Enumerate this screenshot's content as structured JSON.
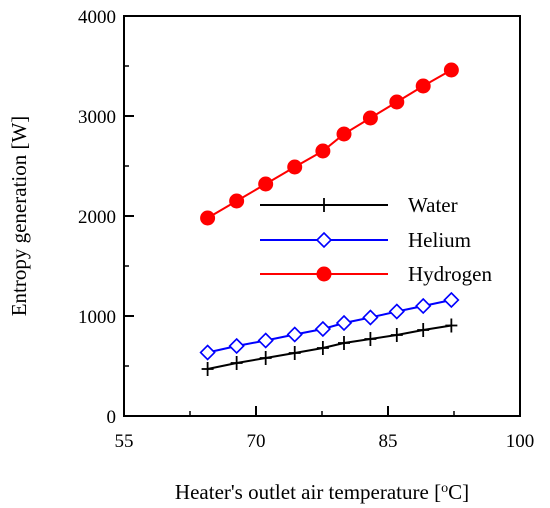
{
  "chart_data": {
    "type": "line",
    "title": "",
    "xlabel": "Heater's outlet air temperature [",
    "xlabel_sup": "o",
    "xlabel_tail": "C]",
    "ylabel": "Entropy generation [W]",
    "xlim": [
      55,
      100
    ],
    "ylim": [
      0,
      4000
    ],
    "xticks": [
      "55",
      "70",
      "85",
      "100"
    ],
    "xtick_values": [
      55,
      70,
      85,
      100
    ],
    "xminor": [
      62.5,
      77.5,
      92.5
    ],
    "yticks": [
      "0",
      "1000",
      "2000",
      "3000",
      "4000"
    ],
    "ytick_values": [
      0,
      1000,
      2000,
      3000,
      4000
    ],
    "yminor": [
      500,
      1500,
      2500,
      3500
    ],
    "grid": false,
    "legend_position": "center-right",
    "x": [
      64.5,
      67.8,
      71.1,
      74.4,
      77.6,
      80.0,
      83.0,
      86.0,
      89.0,
      92.2
    ],
    "series": [
      {
        "name": "Water",
        "color": "#000000",
        "marker": "plus",
        "values": [
          470,
          530,
          580,
          630,
          680,
          730,
          770,
          810,
          860,
          905
        ]
      },
      {
        "name": "Helium",
        "color": "#0000ff",
        "marker": "diamond-open",
        "values": [
          635,
          700,
          755,
          815,
          870,
          930,
          985,
          1045,
          1100,
          1160
        ]
      },
      {
        "name": "Hydrogen",
        "color": "#ff0000",
        "marker": "circle-filled",
        "values": [
          1980,
          2150,
          2320,
          2490,
          2650,
          2820,
          2980,
          3140,
          3300,
          3460
        ]
      }
    ]
  }
}
